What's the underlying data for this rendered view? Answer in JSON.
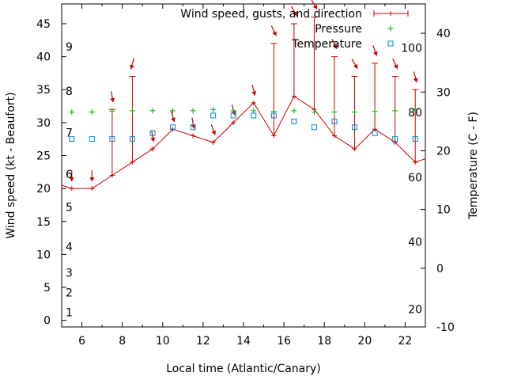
{
  "chart_data": {
    "type": "line",
    "xlabel": "Local time (Atlantic/Canary)",
    "ylabel": "Wind speed (kt - Beaufort)",
    "y2label": "Temperature (C - F)",
    "xlim": [
      5,
      23
    ],
    "ylim": [
      -1,
      48
    ],
    "y2lim": [
      -10,
      45
    ],
    "x_ticks": [
      6,
      8,
      10,
      12,
      14,
      16,
      18,
      20,
      22
    ],
    "y_ticks": [
      0,
      5,
      10,
      15,
      20,
      25,
      30,
      35,
      40,
      45
    ],
    "y2_ticks": [
      -10,
      0,
      10,
      20,
      30,
      40
    ],
    "beaufort_labels": [
      {
        "label": "1",
        "y": 1.2
      },
      {
        "label": "2",
        "y": 4.2
      },
      {
        "label": "3",
        "y": 7.2
      },
      {
        "label": "4",
        "y": 11.2
      },
      {
        "label": "5",
        "y": 17.2
      },
      {
        "label": "6",
        "y": 22.2
      },
      {
        "label": "7",
        "y": 28.5
      },
      {
        "label": "8",
        "y": 34.8
      },
      {
        "label": "9",
        "y": 41.5
      }
    ],
    "fahrenheit_labels": [
      {
        "label": "20",
        "temp": -7
      },
      {
        "label": "40",
        "temp": 4.5
      },
      {
        "label": "60",
        "temp": 15.5
      },
      {
        "label": "80",
        "temp": 26.5
      },
      {
        "label": "100",
        "temp": 37.5
      }
    ],
    "legend": {
      "placement": "top-right",
      "entries": [
        "Wind speed, gusts, and direction",
        "Pressure",
        "Temperature"
      ]
    },
    "series": [
      {
        "name": "Wind speed, gusts, and direction",
        "color": "#cc0000",
        "points": [
          {
            "x": 5.0,
            "y": 20.5,
            "gust": null
          },
          {
            "x": 5.5,
            "y": 20,
            "gust": null,
            "dir": 0
          },
          {
            "x": 6.5,
            "y": 20,
            "gust": null,
            "dir": 0
          },
          {
            "x": 7.5,
            "y": 22,
            "gust": 32,
            "dir": 350
          },
          {
            "x": 8.5,
            "y": 24,
            "gust": 37,
            "dir": 15
          },
          {
            "x": 9.5,
            "y": 26,
            "gust": null,
            "dir": 350
          },
          {
            "x": 10.5,
            "y": 29,
            "gust": null,
            "dir": 345
          },
          {
            "x": 11.5,
            "y": 28,
            "gust": null,
            "dir": 350
          },
          {
            "x": 12.5,
            "y": 27,
            "gust": null,
            "dir": 340
          },
          {
            "x": 13.5,
            "y": 30,
            "gust": null,
            "dir": 345
          },
          {
            "x": 14.5,
            "y": 33,
            "gust": null,
            "dir": 345
          },
          {
            "x": 15.5,
            "y": 28,
            "gust": 42,
            "dir": 335
          },
          {
            "x": 16.5,
            "y": 34,
            "gust": 45,
            "dir": 330
          },
          {
            "x": 17.5,
            "y": 32,
            "gust": 46,
            "dir": 330
          },
          {
            "x": 18.5,
            "y": 28,
            "gust": 40,
            "dir": 335
          },
          {
            "x": 19.5,
            "y": 26,
            "gust": 37,
            "dir": 330
          },
          {
            "x": 20.5,
            "y": 29,
            "gust": 39,
            "dir": 340
          },
          {
            "x": 21.5,
            "y": 27,
            "gust": 37,
            "dir": 335
          },
          {
            "x": 22.5,
            "y": 24,
            "gust": 35,
            "dir": 345
          },
          {
            "x": 23.0,
            "y": 24.5,
            "gust": null
          }
        ]
      },
      {
        "name": "Pressure",
        "color": "#00aa00",
        "x": [
          5.5,
          6.5,
          7.5,
          8.5,
          9.5,
          10.5,
          11.5,
          12.5,
          13.5,
          14.5,
          15.5,
          16.5,
          17.5,
          18.5,
          19.5,
          20.5,
          21.5,
          22.5
        ],
        "y": [
          31.6,
          31.6,
          31.7,
          31.8,
          31.8,
          31.8,
          31.8,
          32.0,
          31.8,
          31.8,
          31.7,
          31.8,
          31.6,
          31.6,
          31.6,
          31.7,
          31.8,
          32.0
        ]
      },
      {
        "name": "Temperature",
        "color": "#0088cc",
        "x": [
          5.5,
          6.5,
          7.5,
          8.5,
          9.5,
          10.5,
          11.5,
          12.5,
          13.5,
          14.5,
          15.5,
          16.5,
          17.5,
          18.5,
          19.5,
          20.5,
          21.5,
          22.5
        ],
        "y": [
          22,
          22,
          22,
          22,
          23,
          24,
          24,
          26,
          26,
          26,
          26,
          25,
          24,
          25,
          24,
          23,
          22,
          22
        ]
      }
    ],
    "axis_color": "#000000"
  }
}
